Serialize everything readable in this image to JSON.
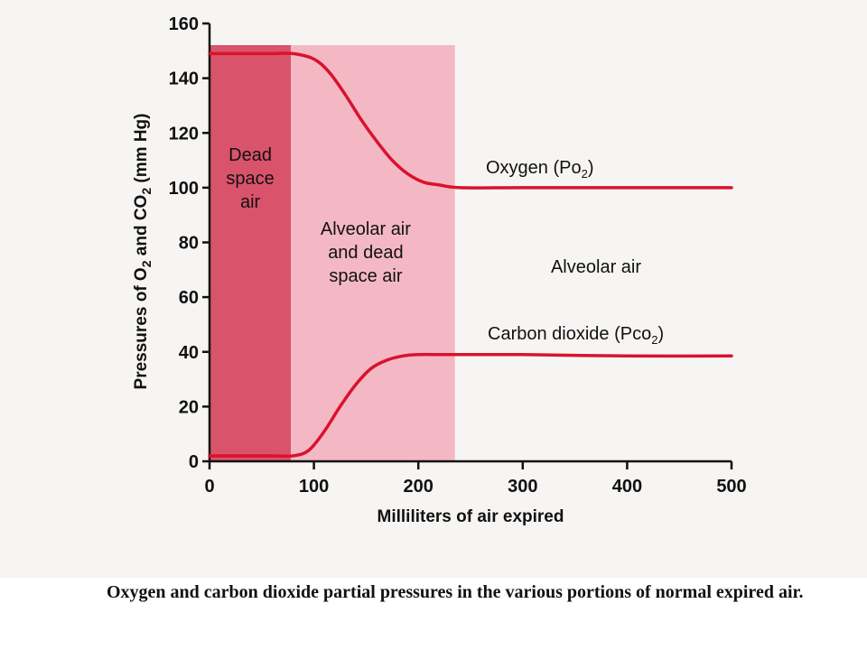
{
  "caption": "Oxygen and carbon dioxide partial pressures in the various portions of normal expired air.",
  "chart_data": {
    "type": "line",
    "xlabel": "Milliliters of air expired",
    "ylabel_parts": [
      "Pressures of O",
      "2",
      " and CO",
      "2",
      " (mm Hg)"
    ],
    "xlim": [
      0,
      500
    ],
    "ylim": [
      0,
      160
    ],
    "x_ticks": [
      0,
      100,
      200,
      300,
      400,
      500
    ],
    "y_ticks": [
      0,
      20,
      40,
      60,
      80,
      100,
      120,
      140,
      160
    ],
    "regions": [
      {
        "name": "dead-space",
        "label_lines": [
          "Dead",
          "space",
          "air"
        ],
        "x_start": 0,
        "x_end": 78,
        "color": "#d9536b"
      },
      {
        "name": "mixed",
        "label_lines": [
          "Alveolar air",
          "and dead",
          "space air"
        ],
        "x_start": 78,
        "x_end": 235,
        "color": "#f4b8c4"
      }
    ],
    "region_label_alveolar": "Alveolar air",
    "series": [
      {
        "name": "oxygen",
        "label_main": "Oxygen  (Po",
        "label_sub": "2",
        "label_end": ")",
        "color": "#d9122e",
        "points": [
          [
            0,
            149
          ],
          [
            60,
            149
          ],
          [
            80,
            149
          ],
          [
            100,
            147
          ],
          [
            115,
            142
          ],
          [
            130,
            134
          ],
          [
            145,
            125
          ],
          [
            160,
            117
          ],
          [
            175,
            110
          ],
          [
            190,
            105
          ],
          [
            205,
            102
          ],
          [
            220,
            101
          ],
          [
            240,
            100
          ],
          [
            300,
            100
          ],
          [
            400,
            100
          ],
          [
            500,
            100
          ]
        ]
      },
      {
        "name": "carbon-dioxide",
        "label_main": "Carbon dioxide (Pco",
        "label_sub": "2",
        "label_end": ")",
        "color": "#d9122e",
        "points": [
          [
            0,
            2
          ],
          [
            60,
            2
          ],
          [
            80,
            2
          ],
          [
            95,
            4
          ],
          [
            110,
            11
          ],
          [
            125,
            20
          ],
          [
            140,
            28
          ],
          [
            155,
            34
          ],
          [
            170,
            37
          ],
          [
            185,
            38.5
          ],
          [
            200,
            39
          ],
          [
            230,
            39
          ],
          [
            300,
            39
          ],
          [
            400,
            38.5
          ],
          [
            500,
            38.5
          ]
        ]
      }
    ]
  }
}
